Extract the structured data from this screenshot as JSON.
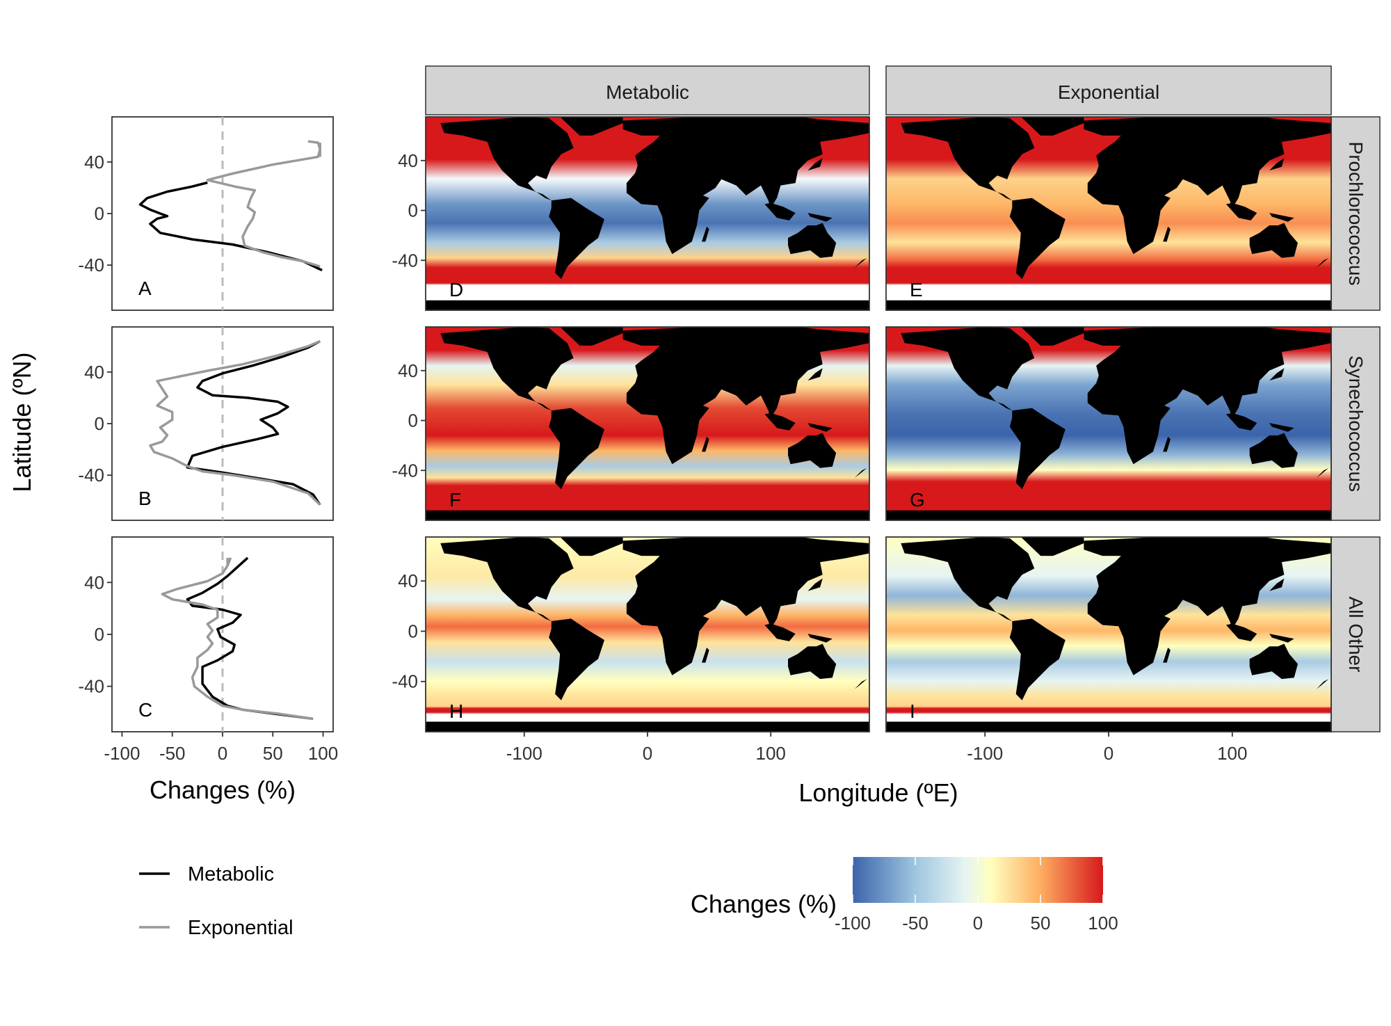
{
  "chart_data": [
    {
      "type": "line",
      "panel": "A",
      "orientation": "vertical-profile",
      "xlim": [
        -110,
        110
      ],
      "xticks": [
        -100,
        -50,
        0,
        50,
        100
      ],
      "ylim": [
        -75,
        75
      ],
      "yticks": [
        -40,
        0,
        40
      ],
      "reference_line_x": 0,
      "series": [
        {
          "name": "Metabolic",
          "color": "#000000",
          "points": [
            [
              99,
              -44
            ],
            [
              80,
              -37
            ],
            [
              45,
              -30
            ],
            [
              10,
              -24
            ],
            [
              -30,
              -20
            ],
            [
              -62,
              -15
            ],
            [
              -72,
              -8
            ],
            [
              -65,
              -4
            ],
            [
              -55,
              -2
            ],
            [
              -62,
              0
            ],
            [
              -72,
              3
            ],
            [
              -82,
              7
            ],
            [
              -75,
              12
            ],
            [
              -55,
              17
            ],
            [
              -30,
              21
            ],
            [
              -15,
              24
            ]
          ]
        },
        {
          "name": "Exponential",
          "color": "#999999",
          "points": [
            [
              97,
              -41
            ],
            [
              80,
              -37
            ],
            [
              60,
              -34
            ],
            [
              40,
              -30
            ],
            [
              22,
              -25
            ],
            [
              20,
              -18
            ],
            [
              25,
              -10
            ],
            [
              30,
              -4
            ],
            [
              32,
              1
            ],
            [
              25,
              5
            ],
            [
              28,
              12
            ],
            [
              32,
              18
            ],
            [
              12,
              21
            ],
            [
              -15,
              26
            ],
            [
              10,
              31
            ],
            [
              50,
              38
            ],
            [
              80,
              42
            ],
            [
              95,
              44
            ],
            [
              97,
              50
            ],
            [
              95,
              55
            ],
            [
              85,
              56
            ]
          ]
        }
      ],
      "extra_segments": [
        {
          "series": "Exponential",
          "color": "#999999",
          "points": [
            [
              97,
              44
            ],
            [
              97,
              55
            ]
          ]
        }
      ]
    },
    {
      "type": "line",
      "panel": "B",
      "orientation": "vertical-profile",
      "xlim": [
        -110,
        110
      ],
      "xticks": [
        -100,
        -50,
        0,
        50,
        100
      ],
      "ylim": [
        -75,
        75
      ],
      "yticks": [
        -40,
        0,
        40
      ],
      "reference_line_x": 0,
      "series": [
        {
          "name": "Metabolic",
          "color": "#000000",
          "points": [
            [
              97,
              -63
            ],
            [
              90,
              -55
            ],
            [
              70,
              -47
            ],
            [
              40,
              -43
            ],
            [
              0,
              -38
            ],
            [
              -35,
              -34
            ],
            [
              -30,
              -25
            ],
            [
              0,
              -18
            ],
            [
              35,
              -12
            ],
            [
              55,
              -8
            ],
            [
              50,
              -3
            ],
            [
              38,
              3
            ],
            [
              55,
              8
            ],
            [
              65,
              13
            ],
            [
              55,
              17
            ],
            [
              25,
              20
            ],
            [
              -10,
              22
            ],
            [
              -25,
              28
            ],
            [
              -20,
              33
            ],
            [
              0,
              39
            ],
            [
              30,
              45
            ],
            [
              60,
              52
            ],
            [
              85,
              59
            ],
            [
              97,
              64
            ]
          ]
        },
        {
          "name": "Exponential",
          "color": "#999999",
          "points": [
            [
              97,
              -63
            ],
            [
              85,
              -54
            ],
            [
              50,
              -45
            ],
            [
              10,
              -40
            ],
            [
              -20,
              -37
            ],
            [
              -35,
              -33
            ],
            [
              -50,
              -27
            ],
            [
              -68,
              -22
            ],
            [
              -72,
              -17
            ],
            [
              -60,
              -14
            ],
            [
              -55,
              -9
            ],
            [
              -62,
              -3
            ],
            [
              -50,
              3
            ],
            [
              -50,
              9
            ],
            [
              -65,
              14
            ],
            [
              -55,
              21
            ],
            [
              -60,
              27
            ],
            [
              -65,
              33
            ],
            [
              -40,
              37
            ],
            [
              -15,
              41
            ],
            [
              20,
              46
            ],
            [
              55,
              53
            ],
            [
              85,
              60
            ],
            [
              97,
              64
            ]
          ]
        }
      ]
    },
    {
      "type": "line",
      "panel": "C",
      "orientation": "vertical-profile",
      "xlim": [
        -110,
        110
      ],
      "xticks": [
        -100,
        -50,
        0,
        50,
        100
      ],
      "ylim": [
        -75,
        75
      ],
      "yticks": [
        -40,
        0,
        40
      ],
      "reference_line_x": 0,
      "series": [
        {
          "name": "Metabolic",
          "color": "#000000",
          "points": [
            [
              90,
              -65
            ],
            [
              60,
              -62
            ],
            [
              20,
              -58
            ],
            [
              5,
              -55
            ],
            [
              -10,
              -48
            ],
            [
              -20,
              -38
            ],
            [
              -20,
              -30
            ],
            [
              -20,
              -25
            ],
            [
              -5,
              -20
            ],
            [
              10,
              -13
            ],
            [
              12,
              -8
            ],
            [
              -2,
              -2
            ],
            [
              -5,
              4
            ],
            [
              10,
              9
            ],
            [
              18,
              15
            ],
            [
              0,
              19
            ],
            [
              -30,
              22
            ],
            [
              -35,
              27
            ],
            [
              -20,
              32
            ],
            [
              -5,
              39
            ],
            [
              5,
              45
            ],
            [
              15,
              52
            ],
            [
              25,
              59
            ]
          ]
        },
        {
          "name": "Exponential",
          "color": "#999999",
          "points": [
            [
              90,
              -65
            ],
            [
              55,
              -61
            ],
            [
              20,
              -58
            ],
            [
              0,
              -55
            ],
            [
              -15,
              -48
            ],
            [
              -28,
              -40
            ],
            [
              -30,
              -33
            ],
            [
              -25,
              -25
            ],
            [
              -25,
              -18
            ],
            [
              -15,
              -12
            ],
            [
              -10,
              -7
            ],
            [
              -15,
              -2
            ],
            [
              -10,
              3
            ],
            [
              -15,
              8
            ],
            [
              -5,
              13
            ],
            [
              -5,
              19
            ],
            [
              -20,
              23
            ],
            [
              -50,
              27
            ],
            [
              -60,
              31
            ],
            [
              -45,
              35
            ],
            [
              -15,
              41
            ],
            [
              0,
              47
            ],
            [
              5,
              53
            ],
            [
              8,
              59
            ]
          ]
        },
        {
          "name": "Exponential",
          "color": "#999999",
          "points": [
            [
              5,
              53
            ],
            [
              5,
              59
            ]
          ]
        }
      ]
    },
    {
      "type": "heatmap",
      "panel": "maps",
      "description_grid": "3 rows x 2 columns of global maps",
      "column_strips": [
        "Metabolic",
        "Exponential"
      ],
      "row_strips": [
        "Prochlorococcus",
        "Synechococcus",
        "All Other"
      ],
      "panel_tags": [
        [
          "D",
          "E"
        ],
        [
          "F",
          "G"
        ],
        [
          "H",
          "I"
        ]
      ],
      "xlim": [
        -180,
        180
      ],
      "xticks": [
        -100,
        0,
        100
      ],
      "ylim": [
        -80,
        75
      ],
      "yticks": [
        -40,
        0,
        40
      ],
      "xlabel": "Longitude (ºE)",
      "color_scale": {
        "title": "Changes (%)",
        "limits": [
          -100,
          100
        ],
        "ticks": [
          -100,
          -50,
          0,
          50,
          100
        ],
        "colors": [
          "#3c64ab",
          "#d8ecf4",
          "#ffffbf",
          "#fdae61",
          "#d7191c"
        ]
      }
    }
  ],
  "left_profiles": {
    "tags": [
      "A",
      "B",
      "C"
    ],
    "xlabel": "Changes (%)",
    "ylabel": "Latitude (ºN)",
    "x_tick_labels": [
      "-100",
      "-50",
      "0",
      "50",
      "100"
    ],
    "y_tick_labels": [
      "-40",
      "0",
      "40"
    ]
  },
  "legend": {
    "items": [
      {
        "label": "Metabolic",
        "color": "#000000"
      },
      {
        "label": "Exponential",
        "color": "#999999"
      }
    ]
  },
  "maps": {
    "strips": {
      "col_metabolic": "Metabolic",
      "col_exponential": "Exponential",
      "row_pro": "Prochlorococcus",
      "row_syn": "Synechococcus",
      "row_other": "All Other"
    },
    "tags": [
      "D",
      "E",
      "F",
      "G",
      "H",
      "I"
    ],
    "x_tick_labels": [
      "-100",
      "0",
      "100"
    ],
    "y_tick_labels": [
      "40",
      "0",
      "-40"
    ],
    "xlabel": "Longitude (ºE)"
  },
  "colorbar": {
    "title": "Changes (%)",
    "tick_labels": [
      "-100",
      "-50",
      "0",
      "50",
      "100"
    ]
  },
  "colors": {
    "land": "#000000",
    "strip_fill": "#d3d3d3",
    "reference_dash": "#bbbbbb"
  }
}
